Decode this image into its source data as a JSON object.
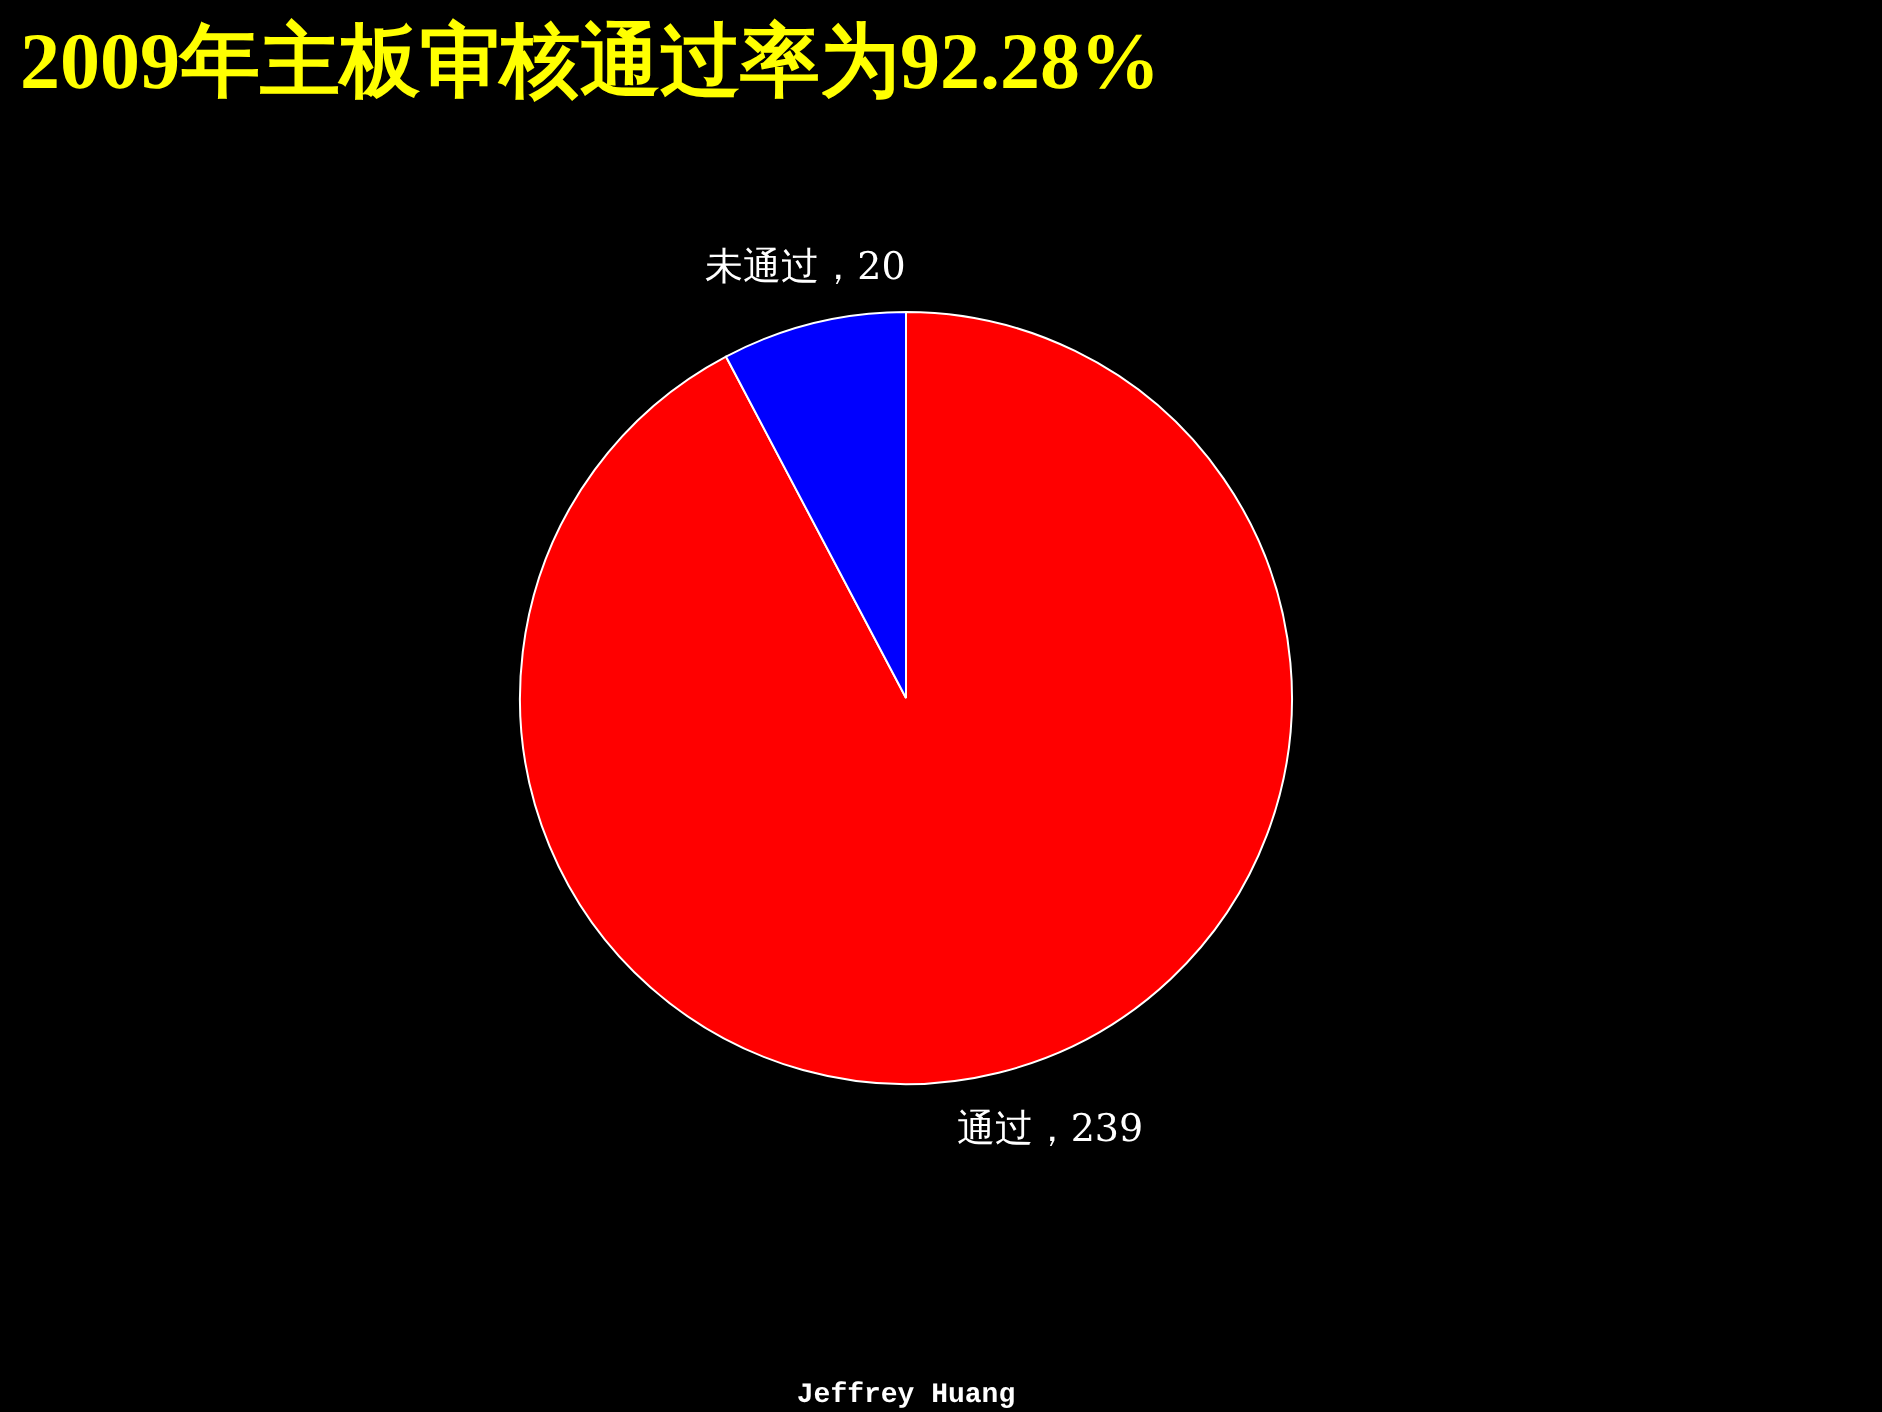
{
  "chart_data": {
    "type": "pie",
    "title": "2009年主板审核通过率为92.28%",
    "categories": [
      "通过",
      "未通过"
    ],
    "values": [
      239,
      20
    ],
    "colors": [
      "#ff0000",
      "#0000ff"
    ],
    "value_labels": [
      "，239",
      "，20"
    ],
    "annotations": [
      "Jeffrey Huang"
    ]
  }
}
